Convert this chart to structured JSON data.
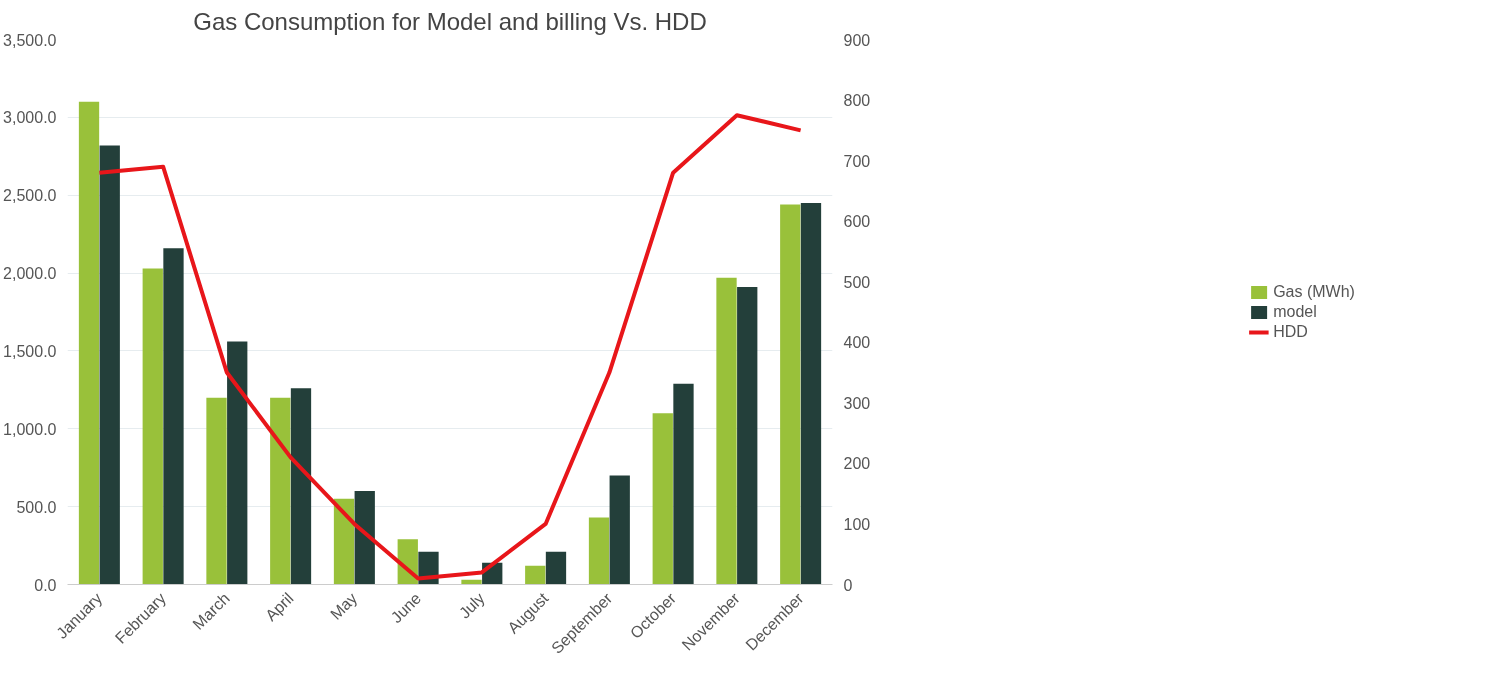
{
  "chart_data": {
    "type": "bar",
    "title": "Gas Consumption for Model and billing Vs. HDD",
    "categories": [
      "January",
      "February",
      "March",
      "April",
      "May",
      "June",
      "July",
      "August",
      "September",
      "October",
      "November",
      "December"
    ],
    "series": [
      {
        "name": "Gas (MWh)",
        "color": "#99c13a",
        "values": [
          3100,
          2030,
          1200,
          1200,
          550,
          290,
          30,
          120,
          430,
          1100,
          1970,
          2440
        ]
      },
      {
        "name": "model",
        "color": "#233f3a",
        "values": [
          2820,
          2160,
          1560,
          1260,
          600,
          210,
          140,
          210,
          700,
          1290,
          1910,
          2450
        ]
      },
      {
        "name": "HDD",
        "type": "line",
        "axis": "y2",
        "color": "#e8161a",
        "values": [
          680,
          690,
          350,
          210,
          100,
          10,
          20,
          100,
          350,
          680,
          775,
          750
        ]
      }
    ],
    "ylim": [
      0,
      3500
    ],
    "yticks": [
      {
        "value": 0,
        "label": "0.0"
      },
      {
        "value": 500,
        "label": "500.0"
      },
      {
        "value": 1000,
        "label": "1,000.0"
      },
      {
        "value": 1500,
        "label": "1,500.0"
      },
      {
        "value": 2000,
        "label": "2,000.0"
      },
      {
        "value": 2500,
        "label": "2,500.0"
      },
      {
        "value": 3000,
        "label": "3,000.0"
      },
      {
        "value": 3500,
        "label": "3,500.0"
      }
    ],
    "y2lim": [
      0,
      900
    ],
    "y2ticks": [
      0,
      100,
      200,
      300,
      400,
      500,
      600,
      700,
      800,
      900
    ],
    "grid": "y",
    "legend": "right"
  }
}
